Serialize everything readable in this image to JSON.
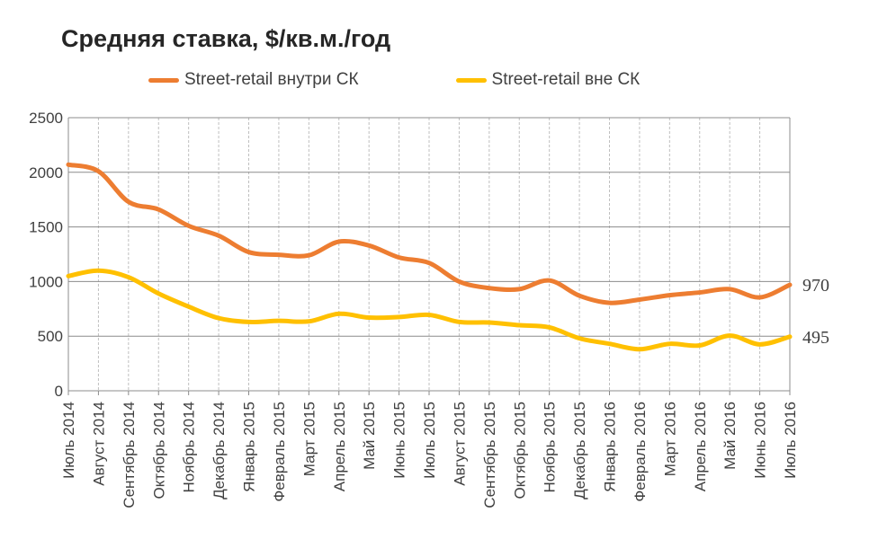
{
  "chart_data": {
    "type": "line",
    "title": "Средняя ставка, $/кв.м./год",
    "xlabel": "",
    "ylabel": "",
    "ylim": [
      0,
      2500
    ],
    "yticks": [
      0,
      500,
      1000,
      1500,
      2000,
      2500
    ],
    "grid": true,
    "legend": "top",
    "categories": [
      "Июль 2014",
      "Август 2014",
      "Сентябрь 2014",
      "Октябрь 2014",
      "Ноябрь 2014",
      "Декабрь 2014",
      "Январь 2015",
      "Февраль 2015",
      "Март 2015",
      "Апрель 2015",
      "Май 2015",
      "Июнь 2015",
      "Июль 2015",
      "Август 2015",
      "Сентябрь 2015",
      "Октябрь 2015",
      "Ноябрь 2015",
      "Декабрь 2015",
      "Январь 2016",
      "Февраль 2016",
      "Март 2016",
      "Апрель 2016",
      "Май 2016",
      "Июнь 2016",
      "Июль 2016"
    ],
    "series": [
      {
        "name": "Street-retail внутри СК",
        "color": "#ED7D31",
        "values": [
          2070,
          2010,
          1730,
          1660,
          1510,
          1420,
          1270,
          1245,
          1240,
          1365,
          1330,
          1220,
          1170,
          1000,
          940,
          930,
          1010,
          870,
          805,
          835,
          875,
          900,
          930,
          855,
          970
        ],
        "end_label": "970"
      },
      {
        "name": "Street-retail  вне СК",
        "color": "#FFC000",
        "values": [
          1050,
          1100,
          1040,
          890,
          770,
          665,
          630,
          640,
          635,
          705,
          670,
          675,
          695,
          630,
          625,
          600,
          580,
          480,
          430,
          380,
          430,
          415,
          505,
          425,
          495
        ],
        "end_label": "495"
      }
    ]
  }
}
